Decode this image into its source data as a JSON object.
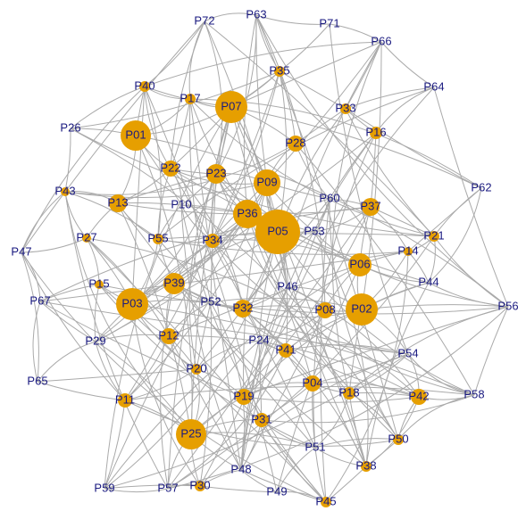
{
  "nodes": [
    "P72",
    "P63",
    "P71",
    "P66",
    "P64",
    "P35",
    "P40",
    "P17",
    "P07",
    "P33",
    "P26",
    "P01",
    "P16",
    "P28",
    "P22",
    "P23",
    "P09",
    "P62",
    "P43",
    "P13",
    "P10",
    "P60",
    "P37",
    "P36",
    "P05",
    "P53",
    "P21",
    "P27",
    "P55",
    "P34",
    "P14",
    "P47",
    "P06",
    "P44",
    "P15",
    "P39",
    "P46",
    "P67",
    "P03",
    "P52",
    "P32",
    "P08",
    "P02",
    "P56",
    "P29",
    "P12",
    "P24",
    "P41",
    "P54",
    "P20",
    "P65",
    "P04",
    "P19",
    "P18",
    "P42",
    "P58",
    "P11",
    "P31",
    "P25",
    "P50",
    "P51",
    "P38",
    "P48",
    "P30",
    "P57",
    "P59",
    "P49",
    "P45"
  ]
}
